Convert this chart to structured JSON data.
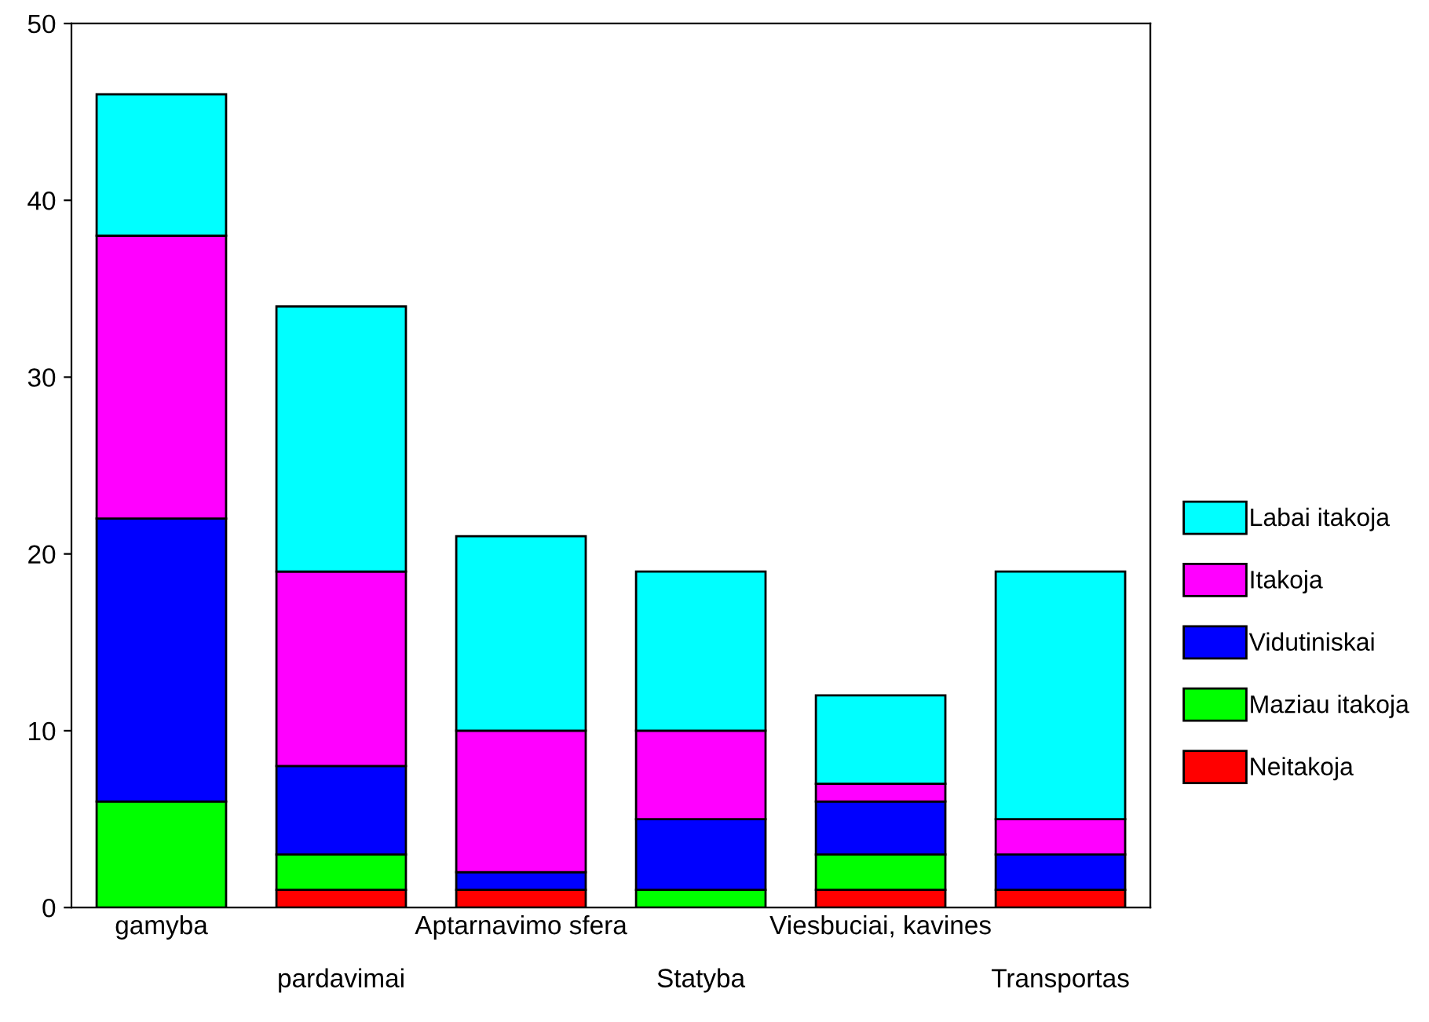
{
  "chart_data": {
    "type": "bar",
    "stacked": true,
    "categories": [
      "gamyba",
      "pardavimai",
      "Aptarnavimo sfera",
      "Statyba",
      "Viesbuciai, kavines",
      "Transportas"
    ],
    "series": [
      {
        "name": "Neitakoja",
        "color": "#ff0000",
        "values": [
          0,
          1,
          1,
          0,
          1,
          1
        ]
      },
      {
        "name": "Maziau itakoja",
        "color": "#00ff00",
        "values": [
          6,
          2,
          0,
          1,
          2,
          0
        ]
      },
      {
        "name": "Vidutiniskai",
        "color": "#0000ff",
        "values": [
          16,
          5,
          1,
          4,
          3,
          2
        ]
      },
      {
        "name": "Itakoja",
        "color": "#ff00ff",
        "values": [
          16,
          11,
          8,
          5,
          1,
          2
        ]
      },
      {
        "name": "Labai itakoja",
        "color": "#00ffff",
        "values": [
          8,
          15,
          11,
          9,
          5,
          14
        ]
      }
    ],
    "ylim": [
      0,
      50
    ],
    "yticks": [
      0,
      10,
      20,
      30,
      40,
      50
    ],
    "grid": false,
    "legend": "right"
  }
}
